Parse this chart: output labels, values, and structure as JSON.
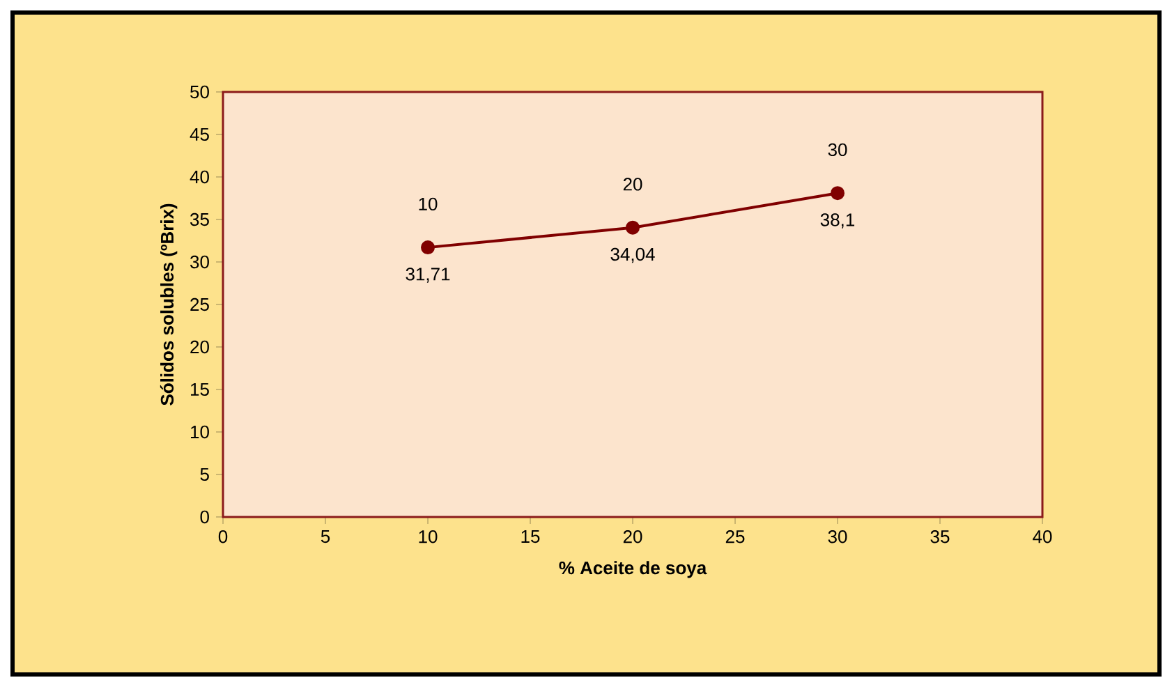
{
  "chart_data": {
    "type": "line",
    "xlabel": "% Aceite de soya",
    "ylabel": "Sólidos solubles (ºBrix)",
    "x": [
      10,
      20,
      30
    ],
    "series": [
      {
        "color": "#800000",
        "values": [
          31.71,
          34.04,
          38.1
        ],
        "value_labels": [
          "31,71",
          "34,04",
          "38,1"
        ]
      }
    ],
    "annotations": [
      {
        "text": "10",
        "x": 10,
        "y": 31.71
      },
      {
        "text": "20",
        "x": 20,
        "y": 34.04
      },
      {
        "text": "30",
        "x": 30,
        "y": 38.1
      }
    ],
    "xlim": [
      0,
      40
    ],
    "xticks": [
      0,
      5,
      10,
      15,
      20,
      25,
      30,
      35,
      40
    ],
    "ylim": [
      0,
      50
    ],
    "yticks": [
      0,
      5,
      10,
      15,
      20,
      25,
      30,
      35,
      40,
      45,
      50
    ],
    "grid": false,
    "marker": "circle",
    "line_style": "solid"
  }
}
